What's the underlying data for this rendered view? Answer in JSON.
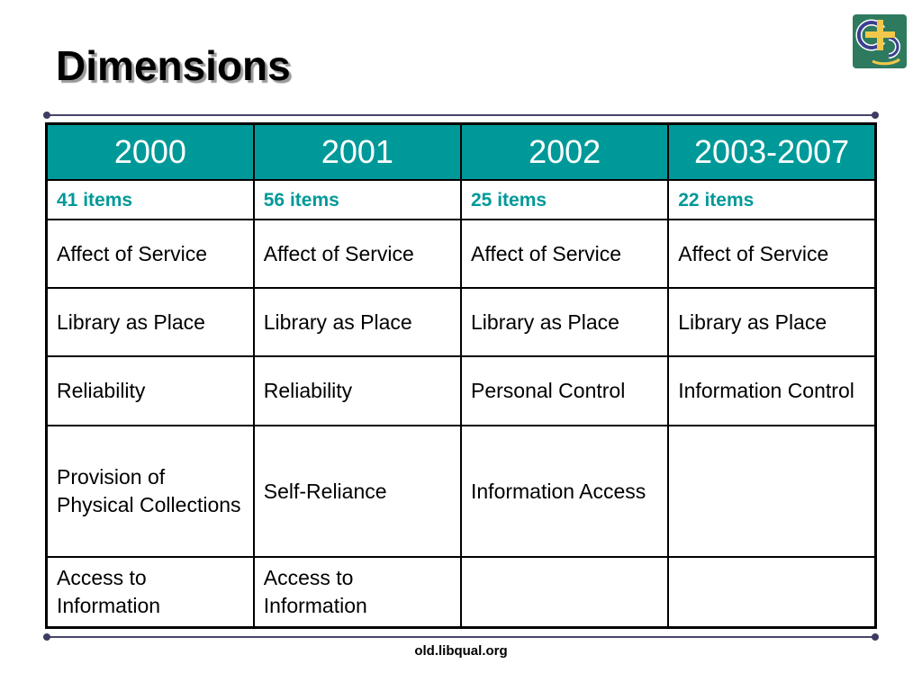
{
  "slide": {
    "title": "Dimensions",
    "footer": "old.libqual.org"
  },
  "logo": {
    "icon": "libqual-logo-icon",
    "colors": {
      "background": "#2e7a5e",
      "cross": "#f2c84b",
      "rings": "#3b3f8f"
    }
  },
  "table": {
    "headers": [
      "2000",
      "2001",
      "2002",
      "2003-2007"
    ],
    "item_counts": [
      "41 items",
      "56 items",
      "25 items",
      "22 items"
    ],
    "rows": [
      [
        "Affect of Service",
        "Affect of Service",
        "Affect of Service",
        "Affect of Service"
      ],
      [
        "Library as Place",
        "Library as Place",
        "Library as Place",
        "Library as Place"
      ],
      [
        "Reliability",
        "Reliability",
        "Personal Control",
        "Information Control"
      ],
      [
        "Provision of Physical Collections",
        "Self-Reliance",
        "Information Access",
        ""
      ],
      [
        "Access to Information",
        "Access to Information",
        "",
        ""
      ]
    ]
  },
  "colors": {
    "header_bg": "#009999",
    "header_text": "#ffffff",
    "items_text": "#009999",
    "rule": "#46466a"
  }
}
